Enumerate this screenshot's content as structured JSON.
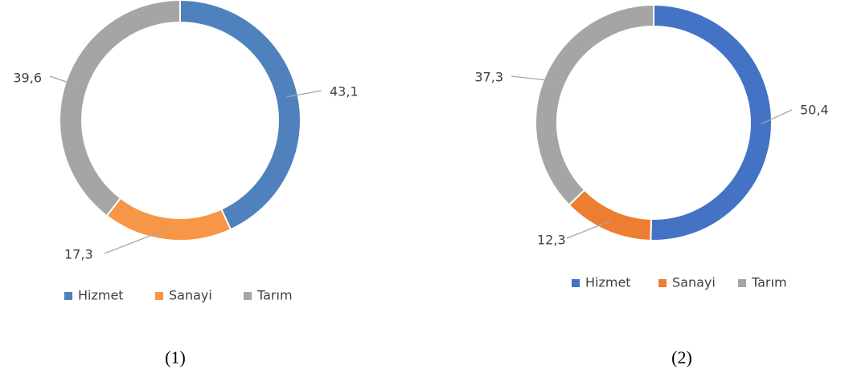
{
  "chart_data": [
    {
      "type": "donut",
      "caption": "(1)",
      "categories": [
        "Hizmet",
        "Sanayi",
        "Tarım"
      ],
      "values": [
        43.1,
        17.3,
        39.6
      ],
      "value_labels": [
        "43,1",
        "17,3",
        "39,6"
      ],
      "colors": [
        "#4f81bd",
        "#f79646",
        "#a5a5a5"
      ],
      "legend": "bottom"
    },
    {
      "type": "donut",
      "caption": "(2)",
      "categories": [
        "Hizmet",
        "Sanayi",
        "Tarım"
      ],
      "values": [
        50.4,
        12.3,
        37.3
      ],
      "value_labels": [
        "50,4",
        "12,3",
        "37,3"
      ],
      "colors": [
        "#4472c4",
        "#ed7d31",
        "#a5a5a5"
      ],
      "legend": "bottom"
    }
  ]
}
